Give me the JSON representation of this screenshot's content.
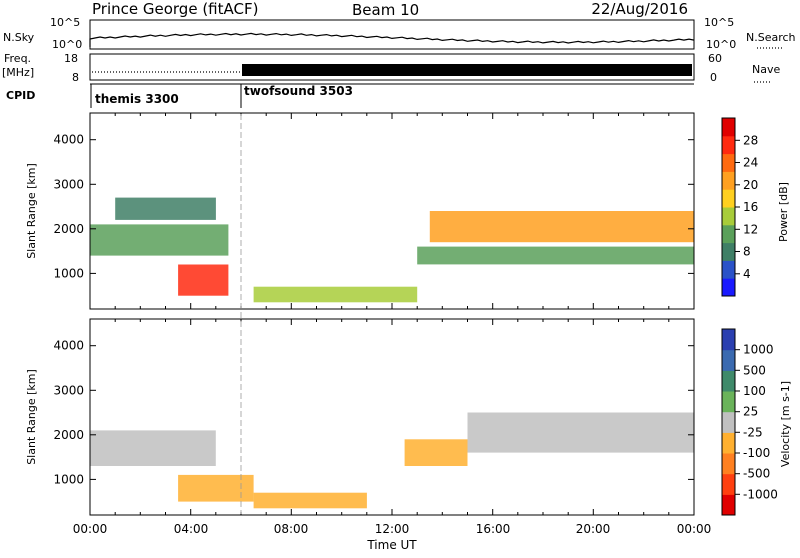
{
  "header": {
    "station": "Prince George (fitACF)",
    "beam": "Beam 10",
    "date": "22/Aug/2016"
  },
  "summary": {
    "noise_panel": {
      "left_label": "N.Sky",
      "right_label": "N.Search",
      "left_ticks": [
        "10^5",
        "10^0"
      ],
      "right_ticks": [
        "10^5",
        "10^0"
      ]
    },
    "freq_panel": {
      "left_label_1": "Freq.",
      "left_label_2": "[MHz]",
      "right_label": "Nave",
      "left_ticks": [
        "18",
        "8"
      ],
      "right_ticks": [
        "60",
        "0"
      ]
    },
    "cpid_panel": {
      "label": "CPID",
      "modes": [
        {
          "name": "themis 3300",
          "start_hour": 0
        },
        {
          "name": "twofsound 3503",
          "start_hour": 6
        }
      ]
    }
  },
  "axes": {
    "x_label": "Time UT",
    "x_ticks": [
      "00:00",
      "04:00",
      "08:00",
      "12:00",
      "16:00",
      "20:00",
      "00:00"
    ],
    "y_label": "Slant Range [km]",
    "y_ticks": [
      "1000",
      "2000",
      "3000",
      "4000"
    ]
  },
  "colorbars": {
    "power": {
      "title": "Power [dB]",
      "ticks": [
        "4",
        "8",
        "12",
        "16",
        "20",
        "24",
        "28"
      ],
      "colors": [
        "#1a1aff",
        "#2a52c8",
        "#3f7f66",
        "#5aa05a",
        "#a8cc3a",
        "#ffd020",
        "#ffa020",
        "#ff6a10",
        "#ff2a10",
        "#e00000"
      ]
    },
    "velocity": {
      "title": "Velocity [m s-1]",
      "ticks": [
        "1000",
        "500",
        "100",
        "25",
        "-25",
        "-100",
        "-500",
        "-1000"
      ],
      "colors": [
        "#2a3fb0",
        "#3a6ab0",
        "#3f8a6a",
        "#6ab35a",
        "#c0c0c0",
        "#ffb030",
        "#ff8020",
        "#ff4010",
        "#e00000"
      ]
    }
  },
  "chart_data": [
    {
      "type": "heatmap",
      "title": "Power",
      "xlabel": "Time UT",
      "ylabel": "Slant Range [km]",
      "xlim": [
        0,
        24
      ],
      "ylim": [
        200,
        4600
      ],
      "colorbar_label": "Power [dB]",
      "colorbar_range": [
        0,
        30
      ],
      "regions": [
        {
          "t0": 0.0,
          "t1": 5.5,
          "r0": 1400,
          "r1": 2100,
          "value": 9
        },
        {
          "t0": 1.0,
          "t1": 5.0,
          "r0": 2200,
          "r1": 2700,
          "value": 8
        },
        {
          "t0": 3.5,
          "t1": 5.5,
          "r0": 500,
          "r1": 1200,
          "value": 24
        },
        {
          "t0": 6.5,
          "t1": 13.0,
          "r0": 350,
          "r1": 700,
          "value": 14
        },
        {
          "t0": 13.5,
          "t1": 24.0,
          "r0": 1700,
          "r1": 2400,
          "value": 20
        },
        {
          "t0": 13.0,
          "t1": 24.0,
          "r0": 1200,
          "r1": 1600,
          "value": 10
        }
      ]
    },
    {
      "type": "heatmap",
      "title": "Velocity",
      "xlabel": "Time UT",
      "ylabel": "Slant Range [km]",
      "xlim": [
        0,
        24
      ],
      "ylim": [
        200,
        4600
      ],
      "colorbar_label": "Velocity [m s-1]",
      "colorbar_range": [
        -1000,
        1000
      ],
      "regions": [
        {
          "t0": 0.0,
          "t1": 5.0,
          "r0": 1300,
          "r1": 2100,
          "value": 0
        },
        {
          "t0": 3.5,
          "t1": 6.5,
          "r0": 500,
          "r1": 1100,
          "value": -300
        },
        {
          "t0": 6.5,
          "t1": 11.0,
          "r0": 350,
          "r1": 700,
          "value": -150
        },
        {
          "t0": 12.5,
          "t1": 15.0,
          "r0": 1300,
          "r1": 1900,
          "value": -300
        },
        {
          "t0": 15.0,
          "t1": 24.0,
          "r0": 1600,
          "r1": 2500,
          "value": 0
        }
      ]
    }
  ]
}
